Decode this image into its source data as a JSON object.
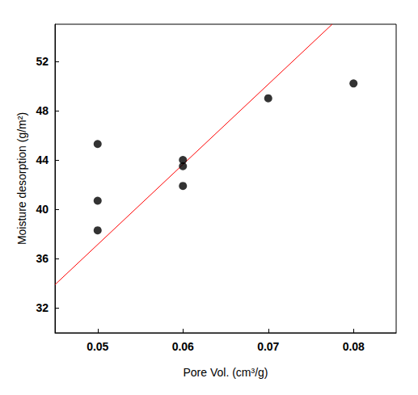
{
  "chart_data": {
    "type": "scatter",
    "x_label": "Pore Vol. (cm³/g)",
    "y_label": "Moisture desorption (g/m²)",
    "xlim": [
      0.045,
      0.085
    ],
    "xticks": [
      0.05,
      0.06,
      0.07,
      0.08
    ],
    "ylim": [
      30,
      55
    ],
    "yticks": [
      32,
      36,
      40,
      44,
      48,
      52
    ],
    "grid": false,
    "series": [
      {
        "type": "scatter",
        "color": "#000000",
        "marker": "circle",
        "x": [
          0.05,
          0.05,
          0.05,
          0.06,
          0.06,
          0.06,
          0.07,
          0.08
        ],
        "values": [
          45.3,
          40.7,
          38.3,
          44.0,
          43.5,
          41.9,
          49.0,
          50.2
        ]
      },
      {
        "type": "line",
        "color": "#ff0000",
        "line_style": "solid",
        "x": [
          0.045,
          0.0775
        ],
        "values": [
          33.9,
          55.0
        ]
      }
    ]
  }
}
